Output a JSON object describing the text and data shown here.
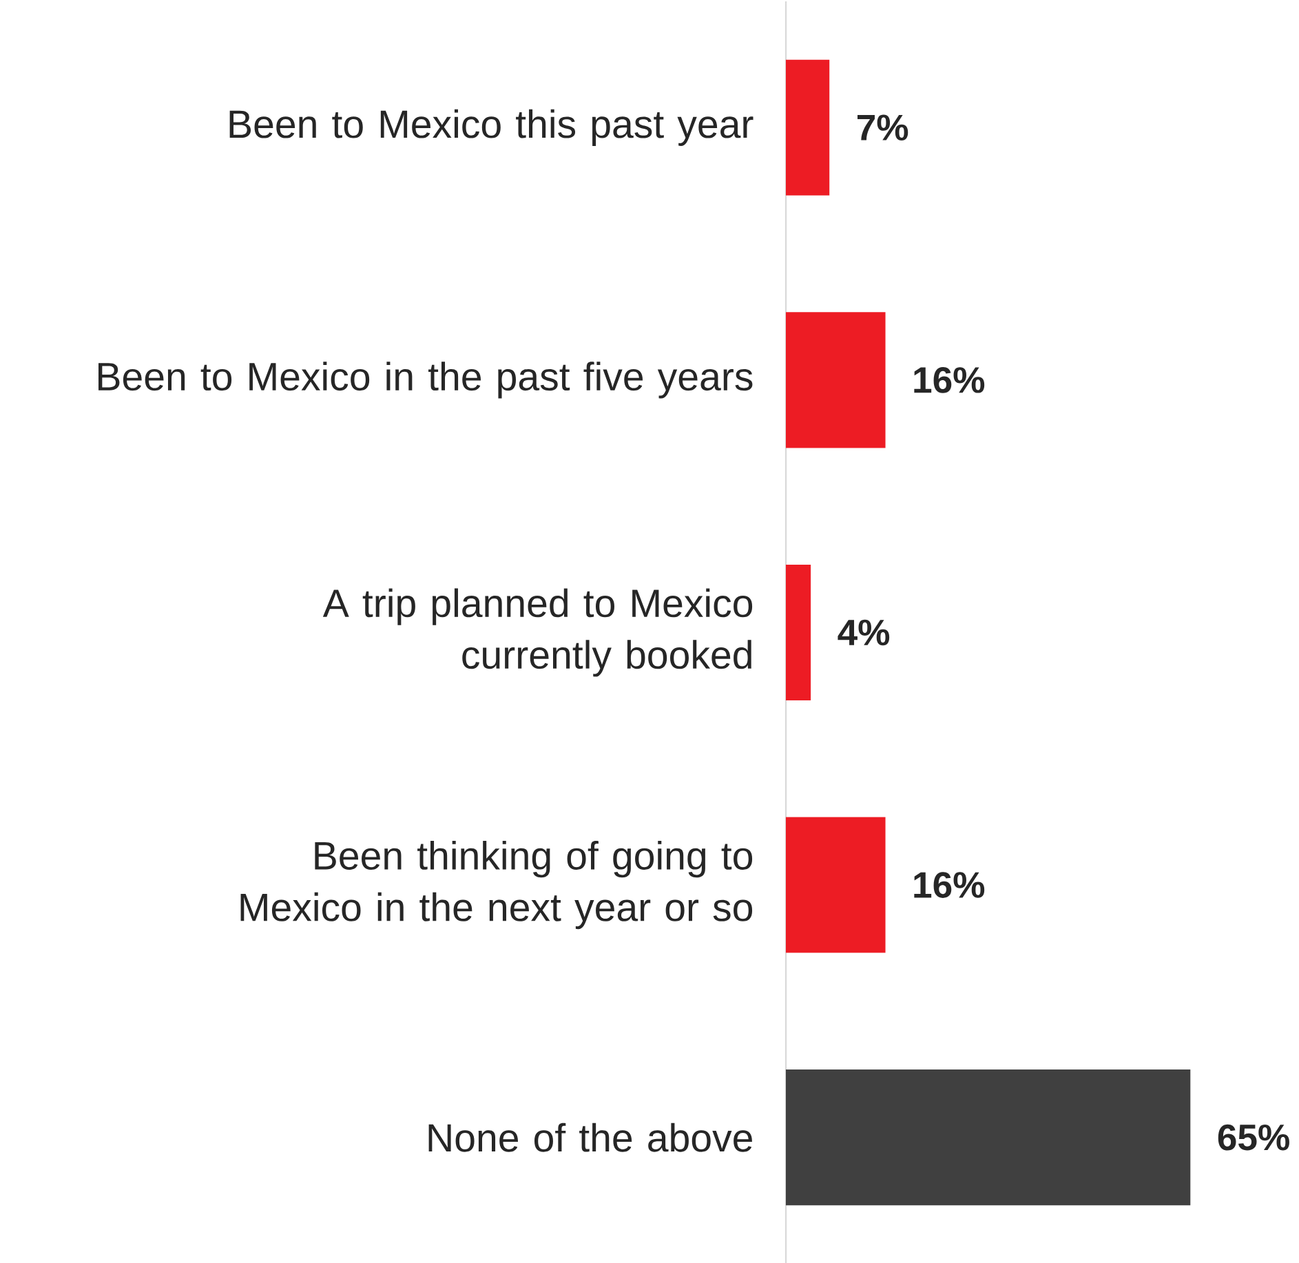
{
  "chart_data": {
    "type": "bar",
    "orientation": "horizontal",
    "categories": [
      "Been to Mexico this past year",
      "Been to Mexico in the past five years",
      "A trip planned to Mexico currently booked",
      "Been thinking of going to Mexico in the next year or so",
      "None of the above"
    ],
    "values": [
      7,
      16,
      4,
      16,
      65
    ],
    "colors": [
      "#ed1c24",
      "#ed1c24",
      "#ed1c24",
      "#ed1c24",
      "#404040"
    ],
    "value_labels": [
      "7%",
      "16%",
      "4%",
      "16%",
      "65%"
    ],
    "xlim": [
      0,
      65
    ],
    "tick_labels": "y"
  }
}
